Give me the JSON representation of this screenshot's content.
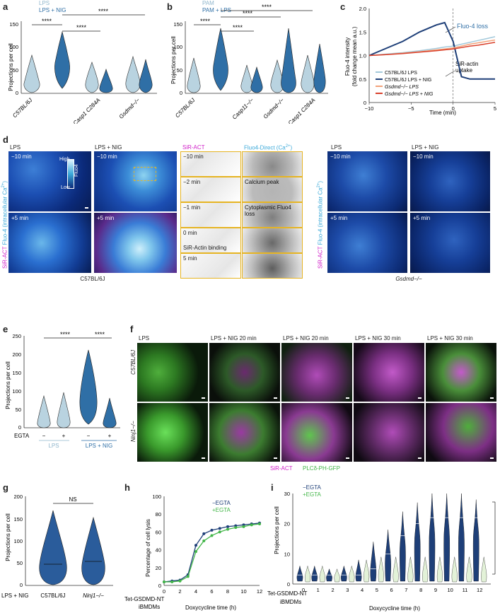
{
  "panels": {
    "a": "a",
    "b": "b",
    "c": "c",
    "d": "d",
    "e": "e",
    "f": "f",
    "g": "g",
    "h": "h",
    "i": "i"
  },
  "colors": {
    "light": "#b9d3e0",
    "dark": "#2f6fa6",
    "darkest": "#1e3f78",
    "green": "#43b649",
    "orange": "#f2a27a",
    "red": "#d9402b",
    "gold": "#e6b422",
    "magenta": "#d020c8"
  },
  "panel_a": {
    "legend": [
      "LPS",
      "LPS + NIG"
    ],
    "ylabel": "Projections per cell",
    "yticks": [
      "0",
      "50",
      "100",
      "150"
    ],
    "groups": [
      "C57BL/6J",
      "Casp1 C284A",
      "Gsdmd−/−"
    ],
    "sig": [
      "****",
      "****",
      "****"
    ]
  },
  "panel_b": {
    "legend": [
      "PAM",
      "PAM + LPS"
    ],
    "ylabel": "Projections per cell",
    "yticks": [
      "0",
      "50",
      "100",
      "150"
    ],
    "groups": [
      "C57BL/6J",
      "Casp11−/−",
      "Gsdmd−/−",
      "Casp1 C284A"
    ],
    "sig": [
      "****",
      "****",
      "****",
      "****"
    ]
  },
  "panel_c": {
    "ylabel": "Fluo-4 intensity",
    "ylabel2": "(fold change mean a.u.)",
    "xlabel": "Time (min)",
    "yticks": [
      "0",
      "0.5",
      "1.0",
      "1.5",
      "2.0"
    ],
    "xticks": [
      "−10",
      "−5",
      "0",
      "5"
    ],
    "ann1": "Fluo-4 loss",
    "ann2a": "SiR-actin",
    "ann2b": "uptake",
    "legend": [
      "C57BL/6J LPS",
      "C57BL/6J LPS + NIG",
      "Gsdmd−/− LPS",
      "Gsdmd−/− LPS + NIG"
    ]
  },
  "chart_data": [
    {
      "type": "line",
      "title": "",
      "xlabel": "Time (min)",
      "ylabel": "Fluo-4 intensity (fold change mean a.u.)",
      "xlim": [
        -10,
        5
      ],
      "ylim": [
        0,
        2.0
      ],
      "x": [
        -10,
        -8,
        -6,
        -4,
        -2,
        -1,
        0,
        1,
        2,
        3,
        4,
        5
      ],
      "series": [
        {
          "name": "C57BL/6J LPS",
          "values": [
            1.0,
            1.03,
            1.06,
            1.1,
            1.15,
            1.18,
            1.2,
            1.24,
            1.28,
            1.32,
            1.36,
            1.4
          ]
        },
        {
          "name": "C57BL/6J LPS + NIG",
          "values": [
            1.0,
            1.15,
            1.3,
            1.5,
            1.65,
            1.7,
            1.3,
            0.55,
            0.5,
            0.5,
            0.5,
            0.5
          ]
        },
        {
          "name": "Gsdmd−/− LPS",
          "values": [
            1.0,
            1.02,
            1.05,
            1.08,
            1.12,
            1.14,
            1.16,
            1.2,
            1.24,
            1.27,
            1.3,
            1.33
          ]
        },
        {
          "name": "Gsdmd−/− LPS + NIG",
          "values": [
            1.0,
            1.02,
            1.04,
            1.07,
            1.1,
            1.12,
            1.14,
            1.17,
            1.2,
            1.22,
            1.25,
            1.28
          ]
        }
      ]
    },
    {
      "type": "line",
      "xlabel": "Doxycycline time (h)",
      "ylabel": "Percentage of cell lysis",
      "xlim": [
        0,
        12
      ],
      "ylim": [
        0,
        100
      ],
      "x": [
        0,
        1,
        2,
        3,
        4,
        5,
        6,
        7,
        8,
        9,
        10,
        11,
        12
      ],
      "series": [
        {
          "name": "−EGTA",
          "values": [
            4,
            5,
            6,
            12,
            45,
            58,
            62,
            64,
            66,
            67,
            68,
            69,
            70
          ]
        },
        {
          "name": "+EGTA",
          "values": [
            4,
            4,
            5,
            10,
            38,
            50,
            56,
            60,
            63,
            65,
            66,
            68,
            69
          ]
        }
      ]
    }
  ],
  "panel_d": {
    "left_cols": [
      "LPS",
      "LPS + NIG"
    ],
    "right_cols": [
      "LPS",
      "LPS + NIG"
    ],
    "t1": "−10 min",
    "t2": "+5 min",
    "ylabel_a": "SiR-ACT",
    "ylabel_b": " Fluo-4 (intracellular Ca",
    "ylabel_sup": "2+",
    "ylabel_end": ")",
    "cbar_high": "High",
    "cbar_low": "Low",
    "cbar_name": "Fluo4",
    "strip_h1": "SiR-ACT",
    "strip_h2": "Fluo4-Direct (Ca",
    "strip_h2_sup": "2+",
    "strip_h2_end": ")",
    "strip_times": [
      "−10 min",
      "−2 min",
      "−1 min",
      "0 min",
      "5 min"
    ],
    "strip_notes": [
      "",
      "Calcium peak",
      "Cytoplasmic Fluo4 loss",
      "SiR-Actin binding",
      ""
    ],
    "caption_left": "C57BL/6J",
    "caption_right": "Gsdmd−/−"
  },
  "panel_e": {
    "ylabel": "Projections per cell",
    "yticks": [
      "0",
      "50",
      "100",
      "150",
      "200",
      "250"
    ],
    "egta_label": "EGTA",
    "egta": [
      "−",
      "+",
      "−",
      "+"
    ],
    "groups": [
      "LPS",
      "LPS + NIG"
    ],
    "sig": [
      "****",
      "****"
    ]
  },
  "panel_f": {
    "cols": [
      "LPS",
      "LPS + NIG 20 min",
      "LPS + NIG 20 min",
      "LPS + NIG 30 min",
      "LPS + NIG 30 min"
    ],
    "rows": [
      "C57BL/6J",
      "Ninj1−/−"
    ],
    "legend1": "SiR-ACT",
    "legend2": "PLCδ-PH-GFP"
  },
  "panel_g": {
    "ylabel": "Projections per cell",
    "yticks": [
      "0",
      "50",
      "100",
      "150",
      "200"
    ],
    "groups": [
      "C57BL/6J",
      "Ninj1−/−"
    ],
    "cond": "LPS + NIG",
    "sig": "NS"
  },
  "panel_h": {
    "ylabel": "Percentage of cell lysis",
    "xlabel": "Doxycycline time (h)",
    "yticks": [
      "0",
      "20",
      "40",
      "60",
      "80",
      "100"
    ],
    "xticks": [
      "0",
      "2",
      "4",
      "6",
      "8",
      "10",
      "12"
    ],
    "legend": [
      "−EGTA",
      "+EGTA"
    ],
    "cell_a": "Tet-GSDMD-NT",
    "cell_b": "iBMDMs"
  },
  "panel_i": {
    "ylabel": "Projections per cell",
    "xlabel": "Doxycycline time (h)",
    "yticks": [
      "0",
      "10",
      "20",
      "30"
    ],
    "xticks": [
      "0",
      "1",
      "2",
      "3",
      "4",
      "5",
      "6",
      "7",
      "8",
      "9",
      "10",
      "11",
      "12"
    ],
    "legend": [
      "−EGTA",
      "+EGTA"
    ],
    "cell_a": "Tet-GSDMD-NT",
    "cell_b": "iBMDMs",
    "sig": "****"
  }
}
